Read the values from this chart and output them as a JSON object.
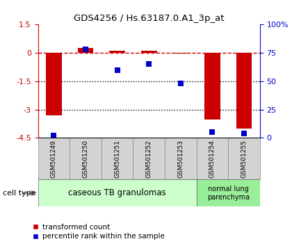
{
  "title": "GDS4256 / Hs.63187.0.A1_3p_at",
  "samples": [
    "GSM501249",
    "GSM501250",
    "GSM501251",
    "GSM501252",
    "GSM501253",
    "GSM501254",
    "GSM501255"
  ],
  "transformed_count": [
    -3.3,
    0.25,
    0.12,
    0.13,
    -0.05,
    -3.55,
    -4.0
  ],
  "percentile_rank": [
    2,
    78,
    60,
    65,
    48,
    5,
    4
  ],
  "ylim_left": [
    -4.5,
    1.5
  ],
  "ylim_right": [
    0,
    100
  ],
  "left_ticks": [
    1.5,
    0,
    -1.5,
    -3,
    -4.5
  ],
  "right_ticks": [
    0,
    25,
    50,
    75,
    100
  ],
  "right_tick_labels": [
    "0",
    "25",
    "50",
    "75",
    "100%"
  ],
  "hline_dashed": 0,
  "hline_dotted1": -1.5,
  "hline_dotted2": -3.0,
  "dashed_color": "#cc0000",
  "dotted_color": "#000000",
  "bar_color": "#cc0000",
  "dot_color": "#0000cc",
  "group1_label": "caseous TB granulomas",
  "group2_label": "normal lung\nparenchyma",
  "group1_color": "#ccffcc",
  "group2_color": "#99ee99",
  "group1_count": 5,
  "group2_count": 2,
  "cell_type_label": "cell type",
  "legend_bar_label": "transformed count",
  "legend_dot_label": "percentile rank within the sample",
  "bar_width": 0.5,
  "dot_size": 30
}
